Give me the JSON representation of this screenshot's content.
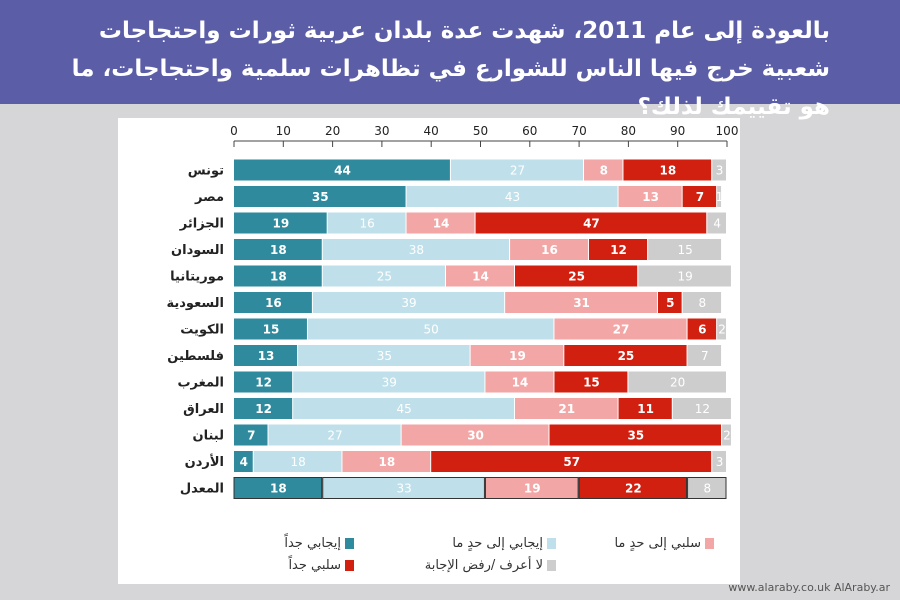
{
  "header": {
    "title": "بالعودة إلى عام 2011، شهدت عدة بلدان عربية ثورات واحتجاجات شعبية خرج فيها الناس للشوارع في تظاهرات سلمية واحتجاجات، ما هو تقييمك لذلك؟"
  },
  "footer": {
    "text": "www.alaraby.co.uk  AlAraby.ar"
  },
  "chart_data": {
    "type": "bar",
    "orientation": "horizontal",
    "stacked": true,
    "xlim": [
      0,
      100
    ],
    "xticks": [
      0,
      10,
      20,
      30,
      40,
      50,
      60,
      70,
      80,
      90,
      100
    ],
    "categories": [
      "تونس",
      "مصر",
      "الجزائر",
      "السودان",
      "موريتانيا",
      "السعودية",
      "الكويت",
      "فلسطين",
      "المغرب",
      "العراق",
      "لبنان",
      "الأردن",
      "المعدل"
    ],
    "series": [
      {
        "name": "إيجابي جداً",
        "color": "#2e8a9c",
        "values": [
          44,
          35,
          19,
          18,
          18,
          16,
          15,
          13,
          12,
          12,
          7,
          4,
          18
        ]
      },
      {
        "name": "إيجابي إلى حدٍ ما",
        "color": "#bfe0ea",
        "values": [
          27,
          43,
          16,
          38,
          25,
          39,
          50,
          35,
          39,
          45,
          27,
          18,
          33
        ]
      },
      {
        "name": "سلبي إلى حدٍ ما",
        "color": "#f2a6a6",
        "values": [
          8,
          13,
          14,
          16,
          14,
          31,
          27,
          19,
          14,
          21,
          30,
          18,
          19
        ]
      },
      {
        "name": "سلبي جداً",
        "color": "#d11f10",
        "values": [
          18,
          7,
          47,
          12,
          25,
          5,
          6,
          25,
          15,
          11,
          35,
          57,
          22
        ]
      },
      {
        "name": "لا أعرف /رفض الإجابة",
        "color": "#cdcdcd",
        "values": [
          3,
          1,
          4,
          15,
          19,
          8,
          2,
          7,
          20,
          12,
          2,
          3,
          8
        ]
      }
    ],
    "legend": "bottom"
  }
}
